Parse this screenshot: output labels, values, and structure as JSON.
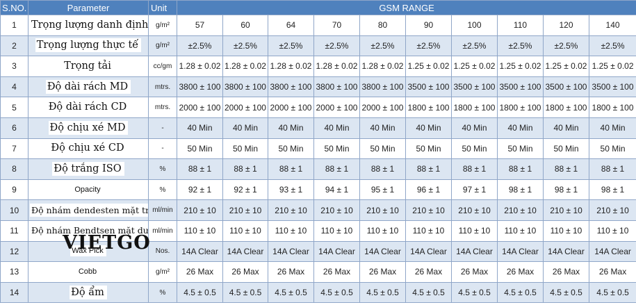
{
  "header": {
    "sno": "S.NO.",
    "parameter": "Parameter",
    "unit": "Unit",
    "gsm_range": "GSM RANGE"
  },
  "rows": [
    {
      "sno": "1",
      "parameter": "Trọng lượng danh định",
      "unit": "g/m²",
      "values": [
        "57",
        "60",
        "64",
        "70",
        "80",
        "90",
        "100",
        "110",
        "120",
        "140"
      ]
    },
    {
      "sno": "2",
      "parameter": "Trọng lượng thực tế",
      "unit": "g/m²",
      "values": [
        "±2.5%",
        "±2.5%",
        "±2.5%",
        "±2.5%",
        "±2.5%",
        "±2.5%",
        "±2.5%",
        "±2.5%",
        "±2.5%",
        "±2.5%"
      ]
    },
    {
      "sno": "3",
      "parameter": "Trọng tải",
      "unit": "cc/gm",
      "values": [
        "1.28 ± 0.02",
        "1.28 ± 0.02",
        "1.28 ± 0.02",
        "1.28 ± 0.02",
        "1.28 ± 0.02",
        "1.25 ± 0.02",
        "1.25 ± 0.02",
        "1.25 ± 0.02",
        "1.25 ± 0.02",
        "1.25 ± 0.02"
      ]
    },
    {
      "sno": "4",
      "parameter": "Độ dài rách MD",
      "unit": "mtrs.",
      "values": [
        "3800 ± 100",
        "3800 ± 100",
        "3800 ± 100",
        "3800 ± 100",
        "3800 ± 100",
        "3500 ± 100",
        "3500 ± 100",
        "3500 ± 100",
        "3500 ± 100",
        "3500 ± 100"
      ]
    },
    {
      "sno": "5",
      "parameter": "Độ dài rách CD",
      "unit": "mtrs.",
      "values": [
        "2000 ± 100",
        "2000 ± 100",
        "2000 ± 100",
        "2000 ± 100",
        "2000 ± 100",
        "1800 ± 100",
        "1800 ± 100",
        "1800 ± 100",
        "1800 ± 100",
        "1800 ± 100"
      ]
    },
    {
      "sno": "6",
      "parameter": "Độ chịu xé MD",
      "unit": "-",
      "values": [
        "40 Min",
        "40 Min",
        "40 Min",
        "40 Min",
        "40 Min",
        "40 Min",
        "40 Min",
        "40 Min",
        "40 Min",
        "40 Min"
      ]
    },
    {
      "sno": "7",
      "parameter": "Độ chịu xé CD",
      "unit": "-",
      "values": [
        "50 Min",
        "50 Min",
        "50 Min",
        "50 Min",
        "50 Min",
        "50 Min",
        "50 Min",
        "50 Min",
        "50 Min",
        "50 Min"
      ]
    },
    {
      "sno": "8",
      "parameter": "Độ trắng ISO",
      "unit": "%",
      "values": [
        "88 ± 1",
        "88 ± 1",
        "88 ± 1",
        "88 ± 1",
        "88 ± 1",
        "88 ± 1",
        "88 ± 1",
        "88 ± 1",
        "88 ± 1",
        "88 ± 1"
      ]
    },
    {
      "sno": "9",
      "parameter": "Opacity",
      "unit": "%",
      "values": [
        "92 ± 1",
        "92 ± 1",
        "93 ± 1",
        "94 ± 1",
        "95 ± 1",
        "96 ± 1",
        "97 ± 1",
        "98 ± 1",
        "98 ± 1",
        "98 ± 1"
      ]
    },
    {
      "sno": "10",
      "parameter": "Độ nhám dendesten mặt trên",
      "unit": "ml/min",
      "values": [
        "210 ± 10",
        "210 ± 10",
        "210 ± 10",
        "210 ± 10",
        "210 ± 10",
        "210 ± 10",
        "210 ± 10",
        "210 ± 10",
        "210 ± 10",
        "210 ± 10"
      ]
    },
    {
      "sno": "11",
      "parameter": "Độ nhám Bendtsen mặt dưới",
      "unit": "ml/min",
      "values": [
        "110 ± 10",
        "110 ± 10",
        "110 ± 10",
        "110 ± 10",
        "110 ± 10",
        "110 ± 10",
        "110 ± 10",
        "110 ± 10",
        "110 ± 10",
        "110 ± 10"
      ]
    },
    {
      "sno": "12",
      "parameter": "Wax Pick",
      "unit": "Nos.",
      "values": [
        "14A Clear",
        "14A Clear",
        "14A Clear",
        "14A Clear",
        "14A Clear",
        "14A Clear",
        "14A Clear",
        "14A Clear",
        "14A Clear",
        "14A Clear"
      ]
    },
    {
      "sno": "13",
      "parameter": "Cobb",
      "unit": "g/m²",
      "values": [
        "26 Max",
        "26 Max",
        "26 Max",
        "26 Max",
        "26 Max",
        "26 Max",
        "26 Max",
        "26 Max",
        "26 Max",
        "26 Max"
      ]
    },
    {
      "sno": "14",
      "parameter": "Độ ẩm",
      "unit": "%",
      "values": [
        "4.5 ± 0.5",
        "4.5 ± 0.5",
        "4.5 ± 0.5",
        "4.5 ± 0.5",
        "4.5 ± 0.5",
        "4.5 ± 0.5",
        "4.5 ± 0.5",
        "4.5 ± 0.5",
        "4.5 ± 0.5",
        "4.5 ± 0.5"
      ]
    }
  ],
  "watermark": "VIETGO",
  "colors": {
    "header_bg": "#4f81bd",
    "row_alt_bg": "#dce6f2",
    "border": "#8fa6c8"
  }
}
